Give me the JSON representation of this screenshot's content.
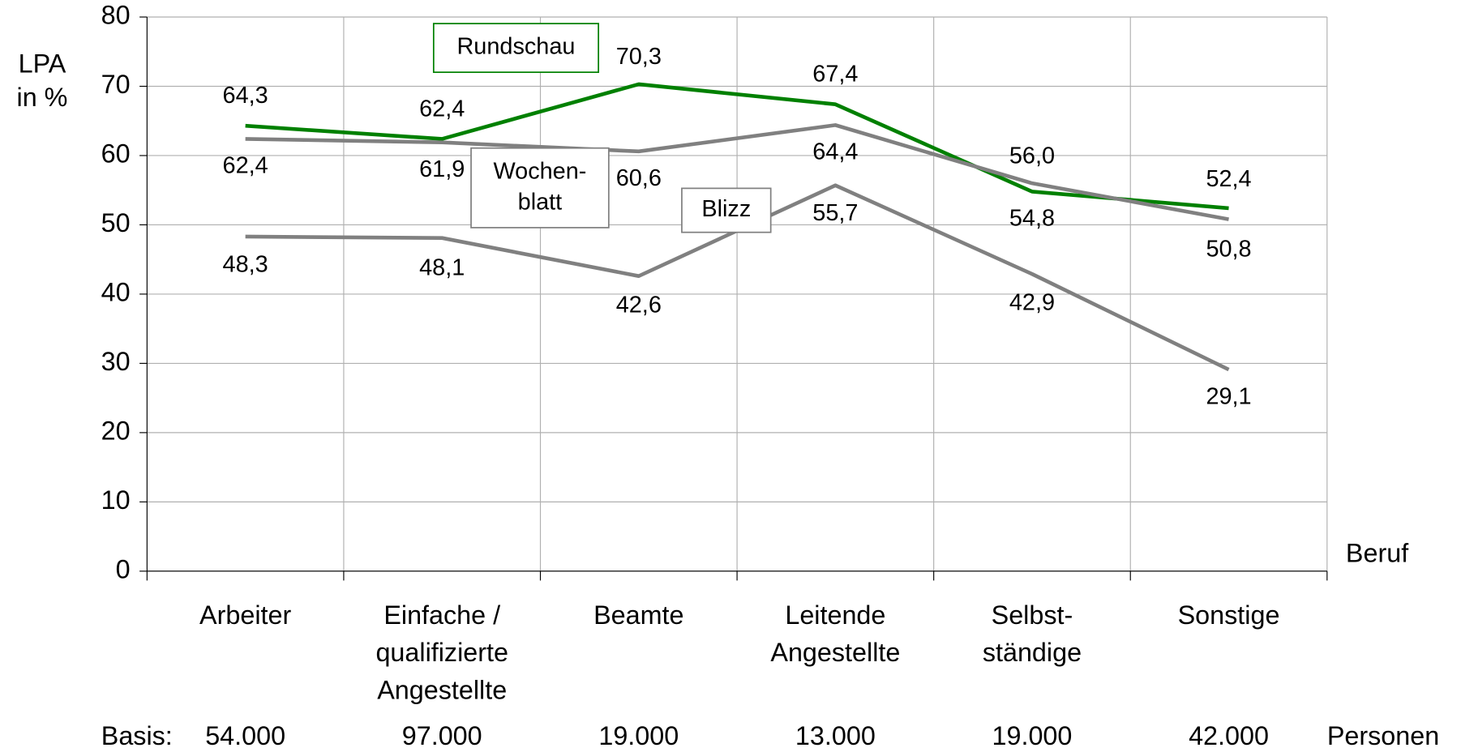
{
  "chart_data": {
    "type": "line",
    "y_label": [
      "LPA",
      "in %"
    ],
    "x_label": "Beruf",
    "categories": [
      [
        "Arbeiter"
      ],
      [
        "Einfache /",
        "qualifizierte",
        "Angestellte"
      ],
      [
        "Beamte"
      ],
      [
        "Leitende",
        "Angestellte"
      ],
      [
        "Selbst-",
        "ständige"
      ],
      [
        "Sonstige"
      ]
    ],
    "series": [
      {
        "name": [
          "Rundschau"
        ],
        "color": "#008000",
        "values": [
          64.3,
          62.4,
          70.3,
          67.4,
          54.8,
          52.4
        ],
        "value_labels": [
          "64,3",
          "62,4",
          "70,3",
          "67,4",
          "54,8",
          "52,4"
        ]
      },
      {
        "name": [
          "Wochen-",
          "blatt"
        ],
        "color": "#808080",
        "values": [
          62.4,
          61.9,
          60.6,
          64.4,
          56.0,
          50.8
        ],
        "value_labels": [
          "62,4",
          "61,9",
          "60,6",
          "64,4",
          "56,0",
          "50,8"
        ]
      },
      {
        "name": [
          "Blizz"
        ],
        "color": "#808080",
        "values": [
          48.3,
          48.1,
          42.6,
          55.7,
          42.9,
          29.1
        ],
        "value_labels": [
          "48,3",
          "48,1",
          "42,6",
          "55,7",
          "42,9",
          "29,1"
        ]
      }
    ],
    "ylim": [
      0,
      80
    ],
    "yticks": [
      0,
      10,
      20,
      30,
      40,
      50,
      60,
      70,
      80
    ],
    "grid": true,
    "basis": {
      "label": "Basis:",
      "values": [
        "54.000",
        "97.000",
        "19.000",
        "13.000",
        "19.000",
        "42.000"
      ],
      "unit": "Personen"
    }
  }
}
